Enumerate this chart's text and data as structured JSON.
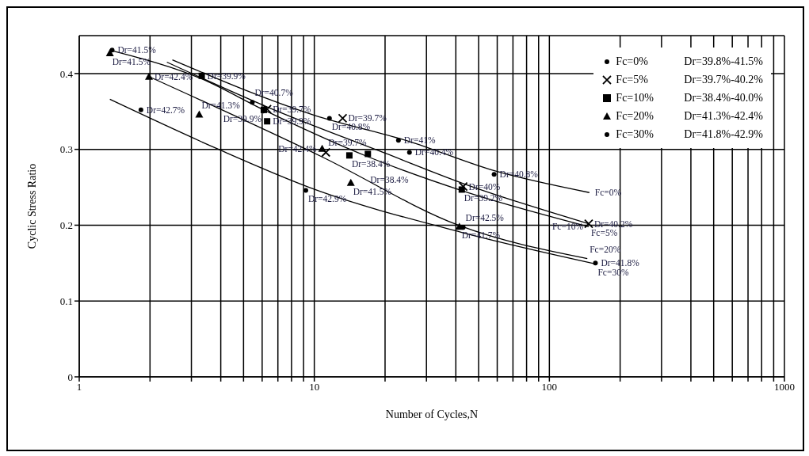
{
  "chart_data": {
    "type": "scatter",
    "xlabel": "Number of Cycles,N",
    "ylabel": "Cyclic Stress Ratio",
    "log": "x",
    "grid": true,
    "legend": "top right",
    "xlim": [
      1,
      1000
    ],
    "ylim": [
      0,
      0.45
    ],
    "xticks": [
      1,
      {
        "value": 2,
        "label": null
      },
      {
        "value": 3,
        "label": null
      },
      {
        "value": 4,
        "label": null
      },
      {
        "value": 5,
        "label": null
      },
      {
        "value": 6,
        "label": null
      },
      {
        "value": 7,
        "label": null
      },
      {
        "value": 8,
        "label": null
      },
      {
        "value": 9,
        "label": null
      },
      10,
      {
        "value": 20,
        "label": null
      },
      {
        "value": 30,
        "label": null
      },
      {
        "value": 40,
        "label": null
      },
      {
        "value": 50,
        "label": null
      },
      {
        "value": 60,
        "label": null
      },
      {
        "value": 70,
        "label": null
      },
      {
        "value": 80,
        "label": null
      },
      {
        "value": 90,
        "label": null
      },
      100,
      {
        "value": 200,
        "label": null
      },
      {
        "value": 300,
        "label": null
      },
      {
        "value": 400,
        "label": null
      },
      {
        "value": 500,
        "label": null
      },
      {
        "value": 600,
        "label": null
      },
      {
        "value": 700,
        "label": null
      },
      {
        "value": 800,
        "label": null
      },
      {
        "value": 900,
        "label": null
      },
      1000
    ],
    "yticks": [
      0,
      0.1,
      0.2,
      0.3,
      0.4
    ],
    "series": [
      {
        "name": "Fc=0%",
        "marker": "circle",
        "color": "#000000",
        "x": [
          1.38,
          5.45,
          11.6,
          22.8,
          25.4,
          58.2
        ],
        "values": [
          0.431,
          0.362,
          0.341,
          0.312,
          0.296,
          0.267
        ]
      },
      {
        "name": "Fc=5%",
        "marker": "cross",
        "color": "#000000",
        "x": [
          6.3,
          13.2,
          11.2,
          43,
          147
        ],
        "values": [
          0.353,
          0.341,
          0.296,
          0.251,
          0.202
        ]
      },
      {
        "name": "Fc=10%",
        "marker": "square",
        "color": "#000000",
        "x": [
          3.32,
          6.1,
          6.3,
          14.1,
          16.9,
          42.4
        ],
        "values": [
          0.397,
          0.352,
          0.337,
          0.292,
          0.294,
          0.247
        ]
      },
      {
        "name": "Fc=20%",
        "marker": "triangle",
        "color": "#000000",
        "x": [
          1.35,
          1.98,
          3.24,
          10.8,
          14.3,
          41.4
        ],
        "values": [
          0.427,
          0.396,
          0.346,
          0.301,
          0.256,
          0.198
        ]
      },
      {
        "name": "Fc=30%",
        "marker": "circle",
        "color": "#000000",
        "x": [
          1.83,
          9.2,
          43,
          157
        ],
        "values": [
          0.352,
          0.246,
          0.197,
          0.15
        ]
      },
      {
        "type": "line",
        "marker": "none",
        "color": "#000000",
        "x": [
          2.49,
          10,
          25,
          58,
          148
        ],
        "values": [
          0.418,
          0.345,
          0.311,
          0.272,
          0.243
        ]
      },
      {
        "type": "line",
        "marker": "none",
        "color": "#000000",
        "x": [
          2.36,
          6.3,
          20,
          43,
          147
        ],
        "values": [
          0.415,
          0.356,
          0.295,
          0.255,
          0.202
        ]
      },
      {
        "type": "line",
        "marker": "none",
        "color": "#000000",
        "x": [
          1.38,
          3.32,
          6.1,
          17,
          43,
          147
        ],
        "values": [
          0.43,
          0.393,
          0.352,
          0.29,
          0.245,
          0.198
        ]
      },
      {
        "type": "line",
        "marker": "none",
        "color": "#000000",
        "x": [
          1.98,
          10.8,
          41,
          145
        ],
        "values": [
          0.396,
          0.29,
          0.2,
          0.156
        ]
      },
      {
        "type": "line",
        "marker": "none",
        "color": "#000000",
        "x": [
          1.35,
          3.85,
          9.5,
          43,
          157
        ],
        "values": [
          0.366,
          0.301,
          0.25,
          0.19,
          0.149
        ]
      }
    ],
    "annotations": [
      "Dr=39.8%-41.5%",
      "Dr=39.7%-40.2%",
      "Dr=38.4%-40.0%",
      "Dr=41.3%-42.4%",
      "Dr=41.8%-42.9%",
      {
        "text": "Dr=41.5%",
        "x": 1.38,
        "y": 0.431
      },
      {
        "text": "Dr=40.7%",
        "x": 5.45,
        "y": 0.362
      },
      {
        "text": "Dr=40.8%",
        "x": 11.6,
        "y": 0.341
      },
      {
        "text": "Dr=41%",
        "x": 22.8,
        "y": 0.312
      },
      {
        "text": "Dr=40.4%",
        "x": 25.4,
        "y": 0.296
      },
      {
        "text": "Dr=40.8%",
        "x": 58.2,
        "y": 0.267
      },
      {
        "text": "Dr=39.7%",
        "x": 6.3,
        "y": 0.353
      },
      {
        "text": "Dr=39.7%",
        "x": 13.2,
        "y": 0.341
      },
      {
        "text": "Dr=39.7%",
        "x": 11.2,
        "y": 0.296
      },
      {
        "text": "Dr=40%",
        "x": 43,
        "y": 0.251
      },
      {
        "text": "Dr=40.2%",
        "x": 147,
        "y": 0.202
      },
      {
        "text": "Dr=39.9%",
        "x": 3.32,
        "y": 0.397
      },
      {
        "text": "Dr=39.9%",
        "x": 6.1,
        "y": 0.352
      },
      {
        "text": "Dr=39.9%",
        "x": 6.3,
        "y": 0.337
      },
      {
        "text": "Dr=38.4%",
        "x": 14.1,
        "y": 0.292
      },
      {
        "text": "Dr=38.4%",
        "x": 16.9,
        "y": 0.294
      },
      {
        "text": "Dr=39.2%",
        "x": 42.4,
        "y": 0.247
      },
      {
        "text": "Dr=41.5%",
        "x": 1.35,
        "y": 0.427
      },
      {
        "text": "Dr=42.4%",
        "x": 1.98,
        "y": 0.396
      },
      {
        "text": "Dr=41.3%",
        "x": 3.24,
        "y": 0.346
      },
      {
        "text": "Dr=42.4%",
        "x": 10.8,
        "y": 0.301
      },
      {
        "text": "Dr=41.5%",
        "x": 14.3,
        "y": 0.256
      },
      {
        "text": "Dr=41.7%",
        "x": 41.4,
        "y": 0.198
      },
      {
        "text": "Dr=42.7%",
        "x": 1.83,
        "y": 0.352
      },
      {
        "text": "Dr=42.9%",
        "x": 9.2,
        "y": 0.246
      },
      {
        "text": "Dr=42.5%",
        "x": 43,
        "y": 0.197
      },
      {
        "text": "Dr=41.8%",
        "x": 157,
        "y": 0.15
      },
      {
        "text": "Fc=0%",
        "x": 148,
        "y": 0.243
      },
      {
        "text": "Fc=5%",
        "x": 147,
        "y": 0.202
      },
      {
        "text": "Fc=10%",
        "x": 147,
        "y": 0.198
      },
      {
        "text": "Fc=20%",
        "x": 145,
        "y": 0.156
      },
      {
        "text": "Fc=30%",
        "x": 157,
        "y": 0.149
      }
    ]
  }
}
